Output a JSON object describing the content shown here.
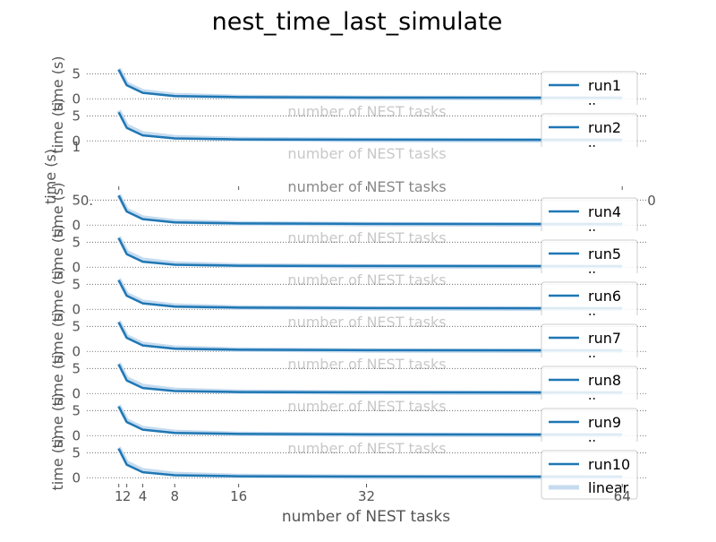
{
  "chart_data": {
    "type": "line",
    "title": "nest_time_last_simulate",
    "xlabel": "number of NEST tasks",
    "ylabel": "time (s)",
    "xticks": [
      1,
      2,
      4,
      8,
      16,
      32,
      64
    ],
    "xtick_labels": [
      "1",
      "2",
      "4",
      "8",
      "16",
      "32",
      "64"
    ],
    "xlim": [
      -3,
      67
    ],
    "yticks": [
      0,
      5
    ],
    "ylim": [
      -1.2,
      7.2
    ],
    "x": [
      1,
      2,
      4,
      8,
      16,
      32,
      64
    ],
    "linear": [
      6.0,
      3.0,
      1.5,
      0.75,
      0.375,
      0.1875,
      0.09375
    ],
    "legend_position": "right",
    "legend_linear_label": "linear",
    "empty_panel": {
      "yticks": [
        "1"
      ],
      "xticks": [
        "0.",
        "0"
      ],
      "xlabel_fragment": "number of NEST tasks"
    },
    "series": [
      {
        "name": "run1",
        "values": [
          5.8,
          2.7,
          1.2,
          0.55,
          0.35,
          0.25,
          0.2
        ]
      },
      {
        "name": "run2",
        "values": [
          5.7,
          2.6,
          1.1,
          0.5,
          0.3,
          0.25,
          0.2
        ]
      },
      {
        "name": "run4",
        "values": [
          5.9,
          2.7,
          1.2,
          0.55,
          0.35,
          0.25,
          0.2
        ]
      },
      {
        "name": "run5",
        "values": [
          5.8,
          2.6,
          1.1,
          0.5,
          0.3,
          0.25,
          0.2
        ]
      },
      {
        "name": "run6",
        "values": [
          5.8,
          2.7,
          1.2,
          0.55,
          0.35,
          0.25,
          0.2
        ]
      },
      {
        "name": "run7",
        "values": [
          5.8,
          2.7,
          1.2,
          0.55,
          0.35,
          0.25,
          0.2
        ]
      },
      {
        "name": "run8",
        "values": [
          5.8,
          2.6,
          1.1,
          0.5,
          0.3,
          0.25,
          0.2
        ]
      },
      {
        "name": "run9",
        "values": [
          5.8,
          2.7,
          1.2,
          0.55,
          0.35,
          0.25,
          0.2
        ]
      },
      {
        "name": "run10",
        "values": [
          5.8,
          2.6,
          1.1,
          0.5,
          0.3,
          0.25,
          0.2
        ]
      }
    ],
    "colors": {
      "run": "#1f77b4",
      "linear": "#c6dbef",
      "text": "#555555",
      "grid": "#555555"
    }
  }
}
